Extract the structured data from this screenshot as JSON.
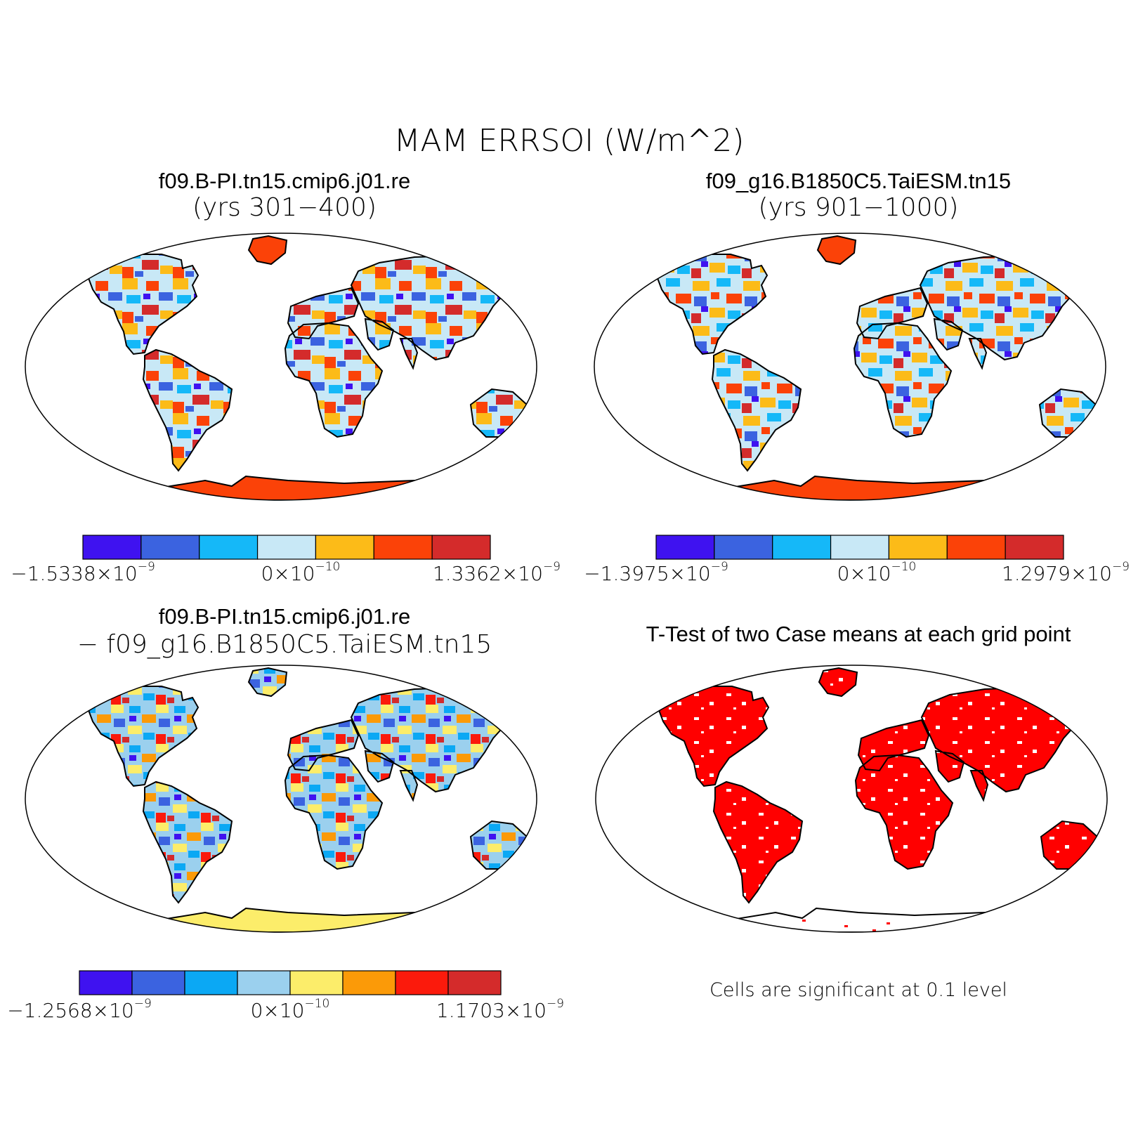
{
  "figure": {
    "title": "MAM ERRSOI (W/m^2)"
  },
  "panels": [
    {
      "title": "f09.B-PI.tn15.cmip6.j01.re",
      "subtitle": "(yrs 301−400)",
      "colorbar": {
        "colors": [
          "#3f12f0",
          "#3b63e0",
          "#15b8f8",
          "#c8e8f6",
          "#fcbb18",
          "#fb4208",
          "#d42b2b"
        ],
        "labels": [
          {
            "mant": "−1.5338×10",
            "exp": "−9"
          },
          {
            "mant": "0×10",
            "exp": "−10"
          },
          {
            "mant": "1.3362×10",
            "exp": "−9"
          }
        ]
      },
      "map_style": "field"
    },
    {
      "title": "f09_g16.B1850C5.TaiESM.tn15",
      "subtitle": "(yrs 901−1000)",
      "colorbar": {
        "colors": [
          "#3f12f0",
          "#3b63e0",
          "#15b8f8",
          "#c8e8f6",
          "#fcbb18",
          "#fb4208",
          "#d42b2b"
        ],
        "labels": [
          {
            "mant": "−1.3975×10",
            "exp": "−9"
          },
          {
            "mant": "0×10",
            "exp": "−10"
          },
          {
            "mant": "1.2979×10",
            "exp": "−9"
          }
        ]
      },
      "map_style": "field"
    },
    {
      "title": "f09.B-PI.tn15.cmip6.j01.re",
      "subtitle": "− f09_g16.B1850C5.TaiESM.tn15",
      "colorbar": {
        "colors": [
          "#3f12f0",
          "#3b63e0",
          "#0ba8f4",
          "#9bd0ee",
          "#fced6a",
          "#fb9a08",
          "#fb1a0c",
          "#d42b2b"
        ],
        "labels": [
          {
            "mant": "−1.2568×10",
            "exp": "−9"
          },
          {
            "mant": "0×10",
            "exp": "−10"
          },
          {
            "mant": "1.1703×10",
            "exp": "−9"
          }
        ]
      },
      "map_style": "difference"
    },
    {
      "title": "T-Test of two Case means at each grid point",
      "note": "Cells are significant at 0.1 level",
      "significance_color": "#ff0000",
      "map_style": "significance"
    }
  ]
}
